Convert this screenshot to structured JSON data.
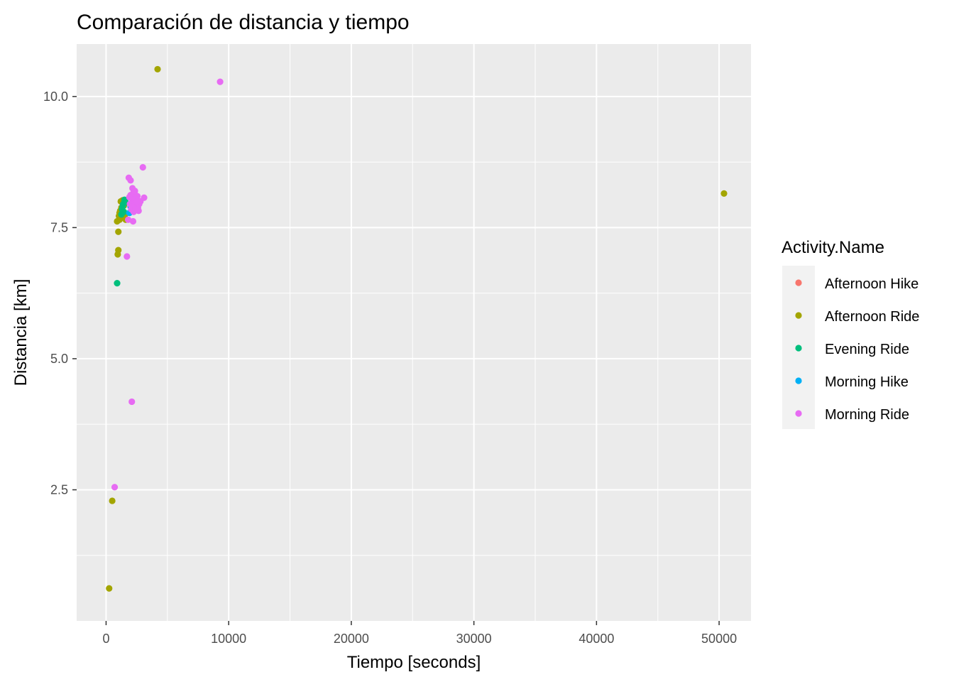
{
  "chart_data": {
    "type": "scatter",
    "title": "Comparación de distancia y tiempo",
    "xlabel": "Tiempo [seconds]",
    "ylabel": "Distancia [km]",
    "xlim": [
      -2400,
      52600
    ],
    "ylim": [
      0.0,
      11.0
    ],
    "x_ticks": [
      0,
      10000,
      20000,
      30000,
      40000,
      50000
    ],
    "x_tick_labels": [
      "0",
      "10000",
      "20000",
      "30000",
      "40000",
      "50000"
    ],
    "y_ticks": [
      2.5,
      5.0,
      7.5,
      10.0
    ],
    "y_tick_labels": [
      "2.5",
      "5.0",
      "7.5",
      "10.0"
    ],
    "grid": true,
    "background": "#ebebeb",
    "legend": {
      "title": "Activity.Name",
      "position": "right"
    },
    "series": [
      {
        "name": "Afternoon Hike",
        "color": "#F8766D",
        "points": []
      },
      {
        "name": "Afternoon Ride",
        "color": "#A3A500",
        "points": [
          [
            4200,
            10.52
          ],
          [
            50400,
            8.15
          ],
          [
            900,
            7.62
          ],
          [
            1000,
            7.42
          ],
          [
            1000,
            7.07
          ],
          [
            950,
            6.99
          ],
          [
            500,
            2.29
          ],
          [
            250,
            0.62
          ],
          [
            1100,
            7.65
          ],
          [
            1200,
            7.7
          ],
          [
            1300,
            7.75
          ],
          [
            1150,
            7.82
          ],
          [
            1250,
            7.88
          ],
          [
            1400,
            7.8
          ],
          [
            1500,
            7.72
          ],
          [
            1350,
            8.02
          ],
          [
            1200,
            8.0
          ],
          [
            1450,
            7.92
          ],
          [
            1100,
            7.78
          ],
          [
            1550,
            7.68
          ],
          [
            1050,
            7.72
          ],
          [
            1600,
            7.65
          ]
        ]
      },
      {
        "name": "Evening Ride",
        "color": "#00BF7D",
        "points": [
          [
            900,
            6.44
          ],
          [
            1300,
            7.85
          ],
          [
            1400,
            7.95
          ],
          [
            1500,
            8.03
          ],
          [
            1350,
            7.9
          ],
          [
            1450,
            7.8
          ],
          [
            1600,
            7.98
          ],
          [
            1250,
            7.75
          ]
        ]
      },
      {
        "name": "Morning Hike",
        "color": "#00B0F6",
        "points": [
          [
            1900,
            7.78
          ],
          [
            2100,
            7.82
          ],
          [
            2300,
            7.85
          ],
          [
            2000,
            7.9
          ],
          [
            2200,
            7.88
          ]
        ]
      },
      {
        "name": "Morning Ride",
        "color": "#E76BF3",
        "points": [
          [
            9300,
            10.28
          ],
          [
            3000,
            8.65
          ],
          [
            1850,
            8.45
          ],
          [
            2000,
            8.4
          ],
          [
            2150,
            8.25
          ],
          [
            2250,
            8.18
          ],
          [
            2400,
            8.12
          ],
          [
            2350,
            8.0
          ],
          [
            2500,
            7.92
          ],
          [
            2600,
            7.88
          ],
          [
            2700,
            7.95
          ],
          [
            3100,
            8.07
          ],
          [
            2100,
            8.05
          ],
          [
            2300,
            7.98
          ],
          [
            1950,
            7.95
          ],
          [
            2050,
            7.85
          ],
          [
            2200,
            7.62
          ],
          [
            1800,
            7.65
          ],
          [
            1700,
            6.95
          ],
          [
            2100,
            4.18
          ],
          [
            700,
            2.55
          ],
          [
            2450,
            8.05
          ],
          [
            2550,
            8.1
          ],
          [
            2000,
            8.12
          ],
          [
            2150,
            7.9
          ],
          [
            2250,
            7.8
          ],
          [
            2400,
            7.85
          ],
          [
            2800,
            8.0
          ],
          [
            2650,
            7.82
          ],
          [
            1900,
            8.08
          ],
          [
            2350,
            8.2
          ],
          [
            2500,
            8.0
          ]
        ]
      }
    ]
  }
}
